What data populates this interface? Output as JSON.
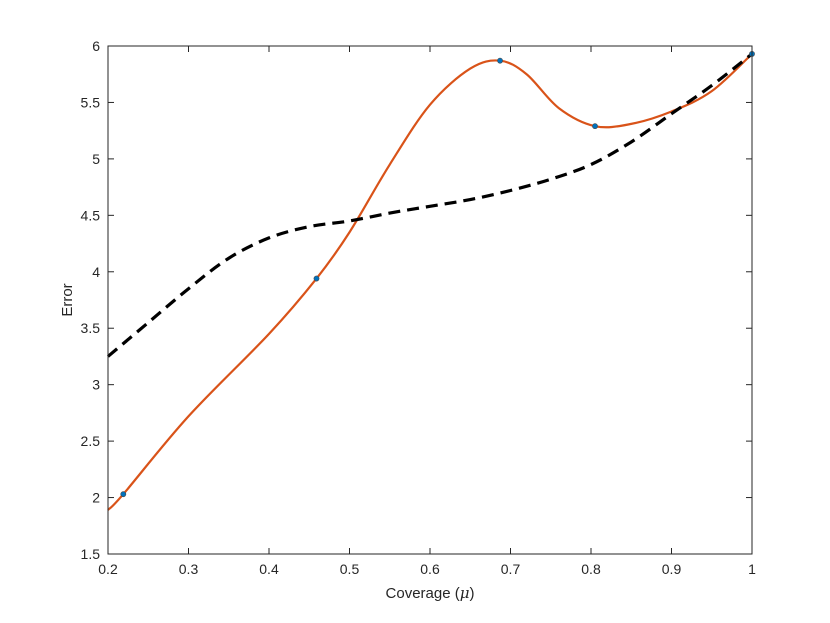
{
  "chart_data": {
    "type": "line",
    "xlabel": "Coverage (",
    "xlabel_symbol": "μ",
    "xlabel_suffix": ")",
    "ylabel": "Error",
    "xlim": [
      0.2,
      1.0
    ],
    "ylim": [
      1.5,
      6.0
    ],
    "grid": false,
    "xticks": [
      0.2,
      0.3,
      0.4,
      0.5,
      0.6,
      0.7,
      0.8,
      0.9,
      1.0
    ],
    "xtick_labels": [
      "0.2",
      "0.3",
      "0.4",
      "0.5",
      "0.6",
      "0.7",
      "0.8",
      "0.9",
      "1"
    ],
    "yticks": [
      1.5,
      2.0,
      2.5,
      3.0,
      3.5,
      4.0,
      4.5,
      5.0,
      5.5,
      6.0
    ],
    "ytick_labels": [
      "1.5",
      "2",
      "2.5",
      "3",
      "3.5",
      "4",
      "4.5",
      "5",
      "5.5",
      "6"
    ],
    "series": [
      {
        "style": "solid",
        "color": "#d95319",
        "x": [
          0.2,
          0.219,
          0.3,
          0.4,
          0.459,
          0.5,
          0.55,
          0.6,
          0.65,
          0.687,
          0.72,
          0.76,
          0.805,
          0.85,
          0.9,
          0.95,
          1.0
        ],
        "y": [
          1.89,
          2.03,
          2.72,
          3.45,
          3.94,
          4.35,
          4.95,
          5.48,
          5.8,
          5.87,
          5.75,
          5.45,
          5.29,
          5.31,
          5.42,
          5.6,
          5.93
        ]
      },
      {
        "style": "dashed",
        "color": "#000000",
        "x": [
          0.2,
          0.25,
          0.3,
          0.35,
          0.4,
          0.45,
          0.5,
          0.55,
          0.6,
          0.65,
          0.7,
          0.75,
          0.8,
          0.85,
          0.9,
          0.95,
          1.0
        ],
        "y": [
          3.25,
          3.55,
          3.85,
          4.12,
          4.3,
          4.4,
          4.45,
          4.52,
          4.58,
          4.64,
          4.72,
          4.82,
          4.95,
          5.15,
          5.4,
          5.65,
          5.93
        ]
      }
    ],
    "markers": {
      "color": "#0072bd",
      "x": [
        0.219,
        0.459,
        0.687,
        0.805,
        1.0
      ],
      "y": [
        2.03,
        3.94,
        5.87,
        5.29,
        5.93
      ]
    }
  }
}
